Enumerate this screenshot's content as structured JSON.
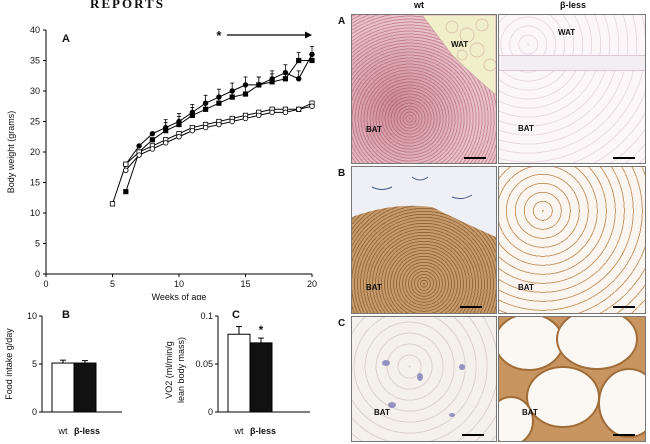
{
  "header": "REPORTS",
  "fig_left": {
    "panelA": {
      "label": "A",
      "ylabel": "Body weight (grams)",
      "xlabel": "Weeks of age",
      "star": "*"
    },
    "panelB": {
      "label": "B",
      "ylabel": "Food intake g/day",
      "xcat": [
        "wt",
        "β-less"
      ]
    },
    "panelC": {
      "label": "C",
      "ylabel": "VO2 (ml/min/g lean body mass)",
      "xcat": [
        "wt",
        "β-less"
      ],
      "star": "*"
    }
  },
  "chart_data": [
    {
      "type": "line",
      "x": [
        5,
        6,
        7,
        8,
        9,
        10,
        11,
        12,
        13,
        14,
        15,
        16,
        17,
        18,
        19,
        20
      ],
      "xlim": [
        0,
        20
      ],
      "ylim": [
        0,
        40
      ],
      "xticks": [
        0,
        5,
        10,
        15,
        20
      ],
      "yticks": [
        0,
        5,
        10,
        15,
        20,
        25,
        30,
        35,
        40
      ],
      "xlabel": "Weeks of age",
      "ylabel": "Body weight (grams)",
      "series": [
        {
          "marker": "filled-square",
          "values": [
            null,
            13.5,
            20,
            22,
            23.5,
            24.5,
            26,
            27,
            28,
            29,
            29.5,
            31,
            31.5,
            32,
            35,
            35
          ]
        },
        {
          "marker": "filled-circle",
          "values": [
            null,
            18,
            21,
            23,
            24,
            25,
            26.5,
            28,
            29,
            30,
            31,
            31,
            32,
            33,
            32,
            36
          ]
        },
        {
          "marker": "open-square",
          "values": [
            11.5,
            18,
            20,
            21,
            22,
            23,
            24,
            24.5,
            25,
            25.5,
            26,
            26.5,
            27,
            27,
            27,
            28
          ]
        },
        {
          "marker": "open-circle",
          "values": [
            null,
            17,
            19.5,
            20.5,
            21.5,
            22.5,
            23.5,
            24,
            24.5,
            25,
            25.5,
            26,
            26.5,
            26.5,
            27,
            27.5
          ]
        }
      ]
    },
    {
      "type": "bar",
      "categories": [
        "wt",
        "β-less"
      ],
      "values": [
        5.1,
        5.1
      ],
      "error": [
        0.3,
        0.25
      ],
      "ylim": [
        0,
        10
      ],
      "yticks": [
        0,
        5,
        10
      ],
      "ylabel": "Food intake g/day"
    },
    {
      "type": "bar",
      "categories": [
        "wt",
        "β-less"
      ],
      "values": [
        0.081,
        0.072
      ],
      "error": [
        0.008,
        0.005
      ],
      "ylim": [
        0,
        0.1
      ],
      "yticks": [
        0,
        0.05,
        0.1
      ],
      "ylabel": "VO2 (ml/min/g lean body mass)"
    }
  ],
  "fig_right": {
    "col_wt": "wt",
    "col_bless": "β-less",
    "rows": [
      "A",
      "B",
      "C"
    ],
    "tags": {
      "a1_wat": "WAT",
      "a1_bat": "BAT",
      "a2_wat": "WAT",
      "a2_bat": "BAT",
      "b1_bat": "BAT",
      "b2_bat": "BAT",
      "c1_bat": "BAT",
      "c2_bat": "BAT"
    }
  }
}
